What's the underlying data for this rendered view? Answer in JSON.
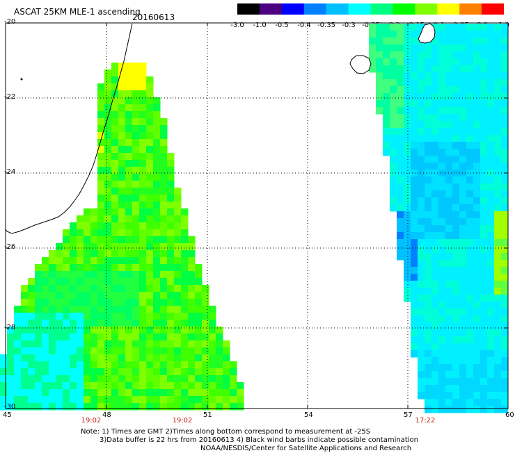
{
  "header": {
    "title": "ASCAT 25KM MLE-1 ascending",
    "date": "20160613"
  },
  "colorbar": {
    "labels": [
      "-3.0",
      "-1.0",
      "-0.5",
      "-0.4",
      "-0.35",
      "-0.3",
      "-0.25",
      "-0.2",
      "-0.15",
      "-0.1",
      "-0.05",
      "0.0",
      "1.0"
    ],
    "colors": [
      "#000000",
      "#4b0082",
      "#0000ff",
      "#0080ff",
      "#00c0ff",
      "#00ffff",
      "#00ff80",
      "#00ff00",
      "#80ff00",
      "#ffff00",
      "#ff8000",
      "#ff0000"
    ]
  },
  "map": {
    "lat_labels": [
      "-20",
      "-22",
      "-24",
      "-26",
      "-28",
      "-30"
    ],
    "lon_labels": [
      "45",
      "48",
      "51",
      "54",
      "57",
      "60"
    ],
    "times": [
      "19:02",
      "19:02",
      "17:22"
    ]
  },
  "notes": {
    "line1": "Note: 1) Times are GMT 2)Times along bottom correspond to measurement at -25S",
    "line2": "3)Data buffer is 22 hrs from 20160613 4) Black wind barbs indicate possible contamination",
    "line3": "NOAA/NESDIS/Center for Satellite Applications and Research"
  }
}
